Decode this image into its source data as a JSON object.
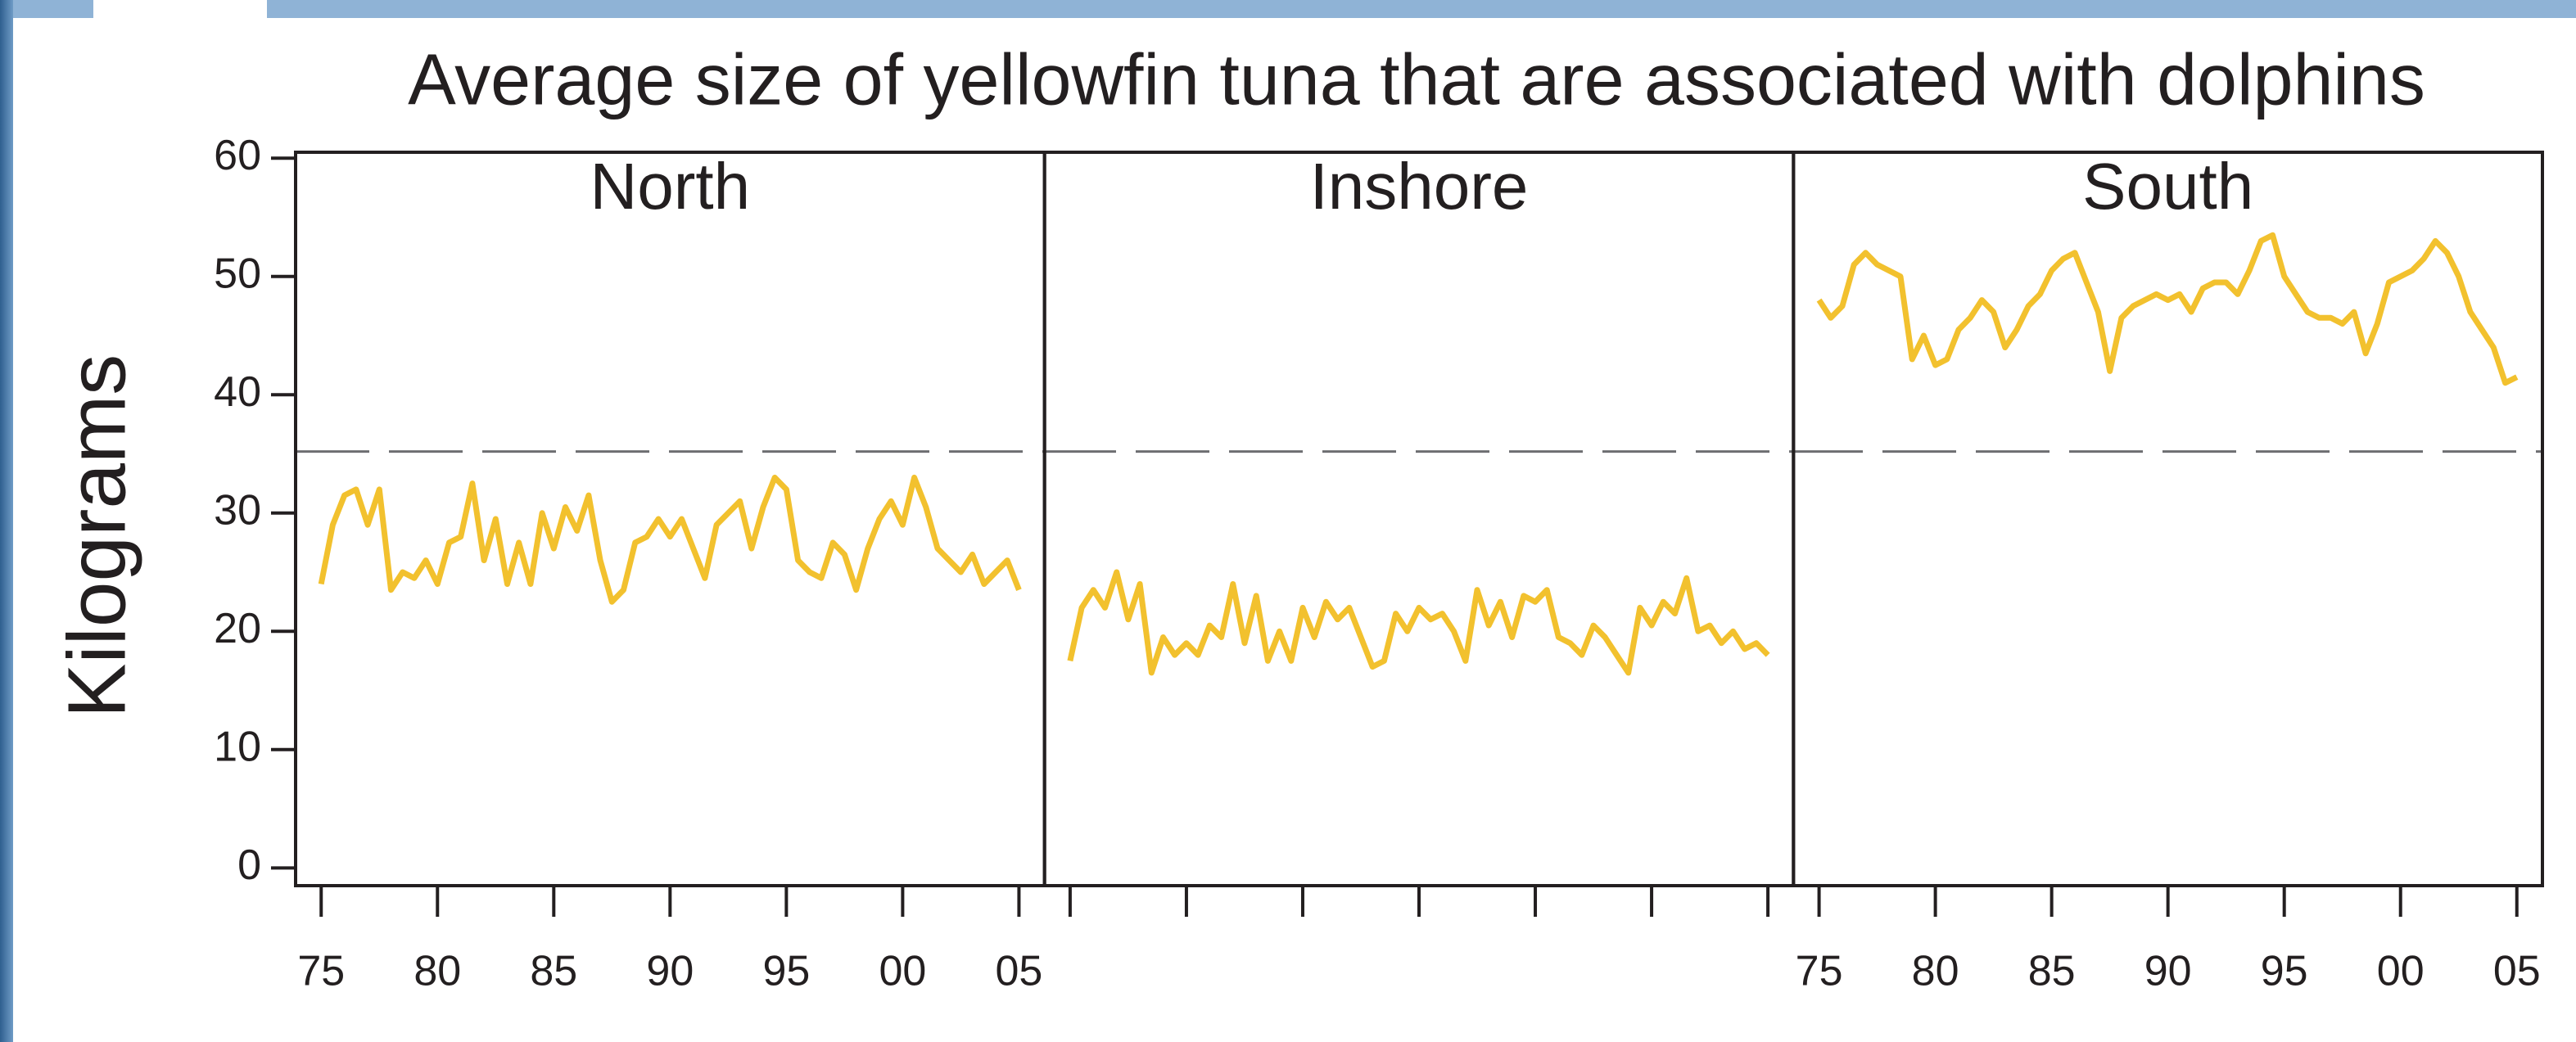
{
  "chart_data": {
    "type": "line",
    "title": "Average size of yellowfin tuna that are associated with dolphins",
    "y_label": "Kilograms",
    "color": "#f2c12e",
    "ylim": [
      -1.5,
      60.5
    ],
    "yticks": [
      0,
      10,
      20,
      30,
      40,
      50,
      60
    ],
    "xlim": [
      1973.9,
      2006.1
    ],
    "reference_line": 35.2,
    "x": [
      1975,
      1975.5,
      1976,
      1976.5,
      1977,
      1977.5,
      1978,
      1978.5,
      1979,
      1979.5,
      1980,
      1980.5,
      1981,
      1981.5,
      1982,
      1982.5,
      1983,
      1983.5,
      1984,
      1984.5,
      1985,
      1985.5,
      1986,
      1986.5,
      1987,
      1987.5,
      1988,
      1988.5,
      1989,
      1989.5,
      1990,
      1990.5,
      1991,
      1991.5,
      1992,
      1992.5,
      1993,
      1993.5,
      1994,
      1994.5,
      1995,
      1995.5,
      1996,
      1996.5,
      1997,
      1997.5,
      1998,
      1998.5,
      1999,
      1999.5,
      2000,
      2000.5,
      2001,
      2001.5,
      2002,
      2002.5,
      2003,
      2003.5,
      2004,
      2004.5,
      2005
    ],
    "panels": [
      {
        "name": "North",
        "xticks": [
          {
            "value": 1975,
            "label": "75"
          },
          {
            "value": 1980,
            "label": "80"
          },
          {
            "value": 1985,
            "label": "85"
          },
          {
            "value": 1990,
            "label": "90"
          },
          {
            "value": 1995,
            "label": "95"
          },
          {
            "value": 2000,
            "label": "00"
          },
          {
            "value": 2005,
            "label": "05"
          }
        ],
        "values": [
          24,
          29,
          31.5,
          32,
          29,
          32,
          23.5,
          25,
          24.5,
          26,
          24,
          27.5,
          28,
          32.5,
          26,
          29.5,
          24,
          27.5,
          24,
          30,
          27,
          30.5,
          28.5,
          31.5,
          26,
          22.5,
          23.5,
          27.5,
          28,
          29.5,
          28,
          29.5,
          27,
          24.5,
          29,
          30,
          31,
          27,
          30.5,
          33,
          32,
          26,
          25,
          24.5,
          27.5,
          26.5,
          23.5,
          27,
          29.5,
          31,
          29,
          33,
          30.5,
          27,
          26,
          25,
          26.5,
          24,
          25,
          26,
          23.5
        ]
      },
      {
        "name": "Inshore",
        "xticks": [
          1975,
          1980,
          1985,
          1990,
          1995,
          2000,
          2005
        ],
        "values": [
          17.5,
          22,
          23.5,
          22,
          25,
          21,
          24,
          16.5,
          19.5,
          18,
          19,
          18,
          20.5,
          19.5,
          24,
          19,
          23,
          17.5,
          20,
          17.5,
          22,
          19.5,
          22.5,
          21,
          22,
          19.5,
          17,
          17.5,
          21.5,
          20,
          22,
          21,
          21.5,
          20,
          17.5,
          23.5,
          20.5,
          22.5,
          19.5,
          23,
          22.5,
          23.5,
          19.5,
          19,
          18,
          20.5,
          19.5,
          18,
          16.5,
          22,
          20.5,
          22.5,
          21.5,
          24.5,
          20,
          20.5,
          19,
          20,
          18.5,
          19,
          18
        ]
      },
      {
        "name": "South",
        "xticks": [
          {
            "value": 1975,
            "label": "75"
          },
          {
            "value": 1980,
            "label": "80"
          },
          {
            "value": 1985,
            "label": "85"
          },
          {
            "value": 1990,
            "label": "90"
          },
          {
            "value": 1995,
            "label": "95"
          },
          {
            "value": 2000,
            "label": "00"
          },
          {
            "value": 2005,
            "label": "05"
          }
        ],
        "values": [
          48,
          46.5,
          47.5,
          51,
          52,
          51,
          50.5,
          50,
          43,
          45,
          42.5,
          43,
          45.5,
          46.5,
          48,
          47,
          44,
          45.5,
          47.5,
          48.5,
          50.5,
          51.5,
          52,
          49.5,
          47,
          42,
          46.5,
          47.5,
          48,
          48.5,
          48,
          48.5,
          47,
          49,
          49.5,
          49.5,
          48.5,
          50.5,
          53,
          53.5,
          50,
          48.5,
          47,
          46.5,
          46.5,
          46,
          47,
          43.5,
          46,
          49.5,
          50,
          50.5,
          51.5,
          53,
          52,
          50,
          47,
          45.5,
          44,
          41,
          41.5
        ]
      }
    ]
  }
}
